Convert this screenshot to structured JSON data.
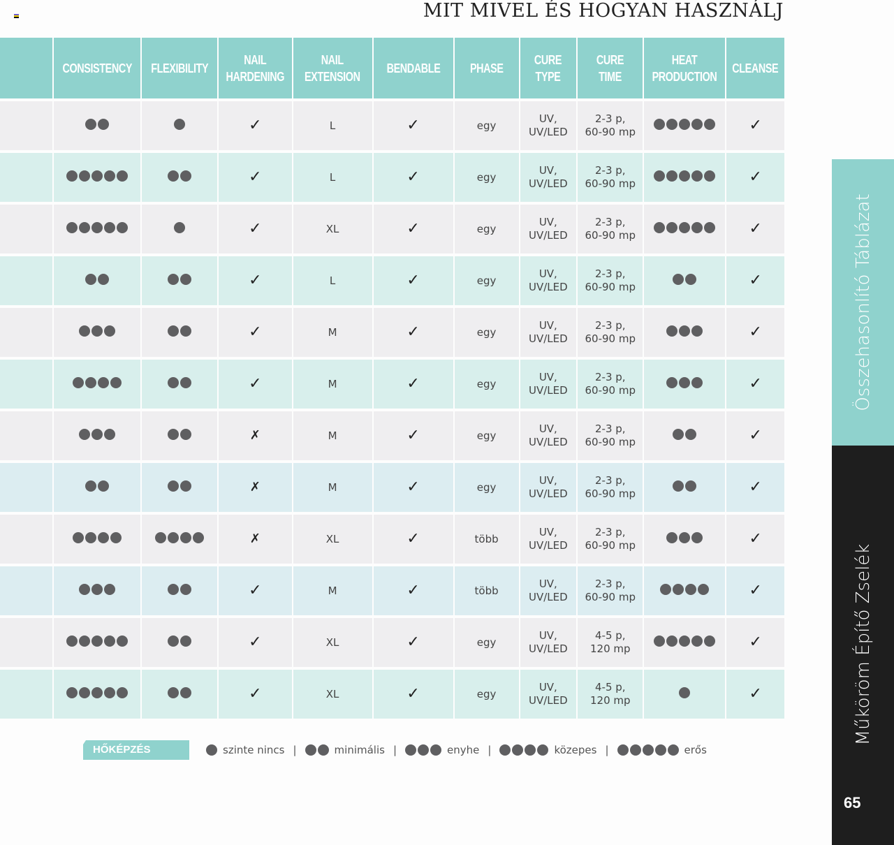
{
  "page_title": "MIT MIVEL ÉS HOGYAN HASZNÁLJ",
  "headers": [
    "",
    "CONSISTENCY",
    "FLEXIBILITY",
    "NAIL\nHARDENING",
    "NAIL\nEXTENSION",
    "BENDABLE",
    "PHASE",
    "CURE\nTYPE",
    "CURE\nTIME",
    "HEAT\nPRODUCTION",
    "CLEANSE"
  ],
  "colors": {
    "header": "#8fd2cd",
    "row_gray": "#efeef0",
    "row_teal": "#d8efec",
    "row_blue": "#dcedf1",
    "dot": "#5f5f61"
  },
  "rows": [
    {
      "bg": "gray",
      "consistency": 2,
      "flexibility": 1,
      "hardening": "check",
      "extension": "L",
      "bendable": "check",
      "phase": "egy",
      "cure_type": "UV,\nUV/LED",
      "cure_time": "2-3 p,\n60-90 mp",
      "heat": 5,
      "cleanse": "check"
    },
    {
      "bg": "teal",
      "consistency": 5,
      "flexibility": 2,
      "hardening": "check",
      "extension": "L",
      "bendable": "check",
      "phase": "egy",
      "cure_type": "UV,\nUV/LED",
      "cure_time": "2-3 p,\n60-90 mp",
      "heat": 5,
      "cleanse": "check"
    },
    {
      "bg": "gray",
      "consistency": 5,
      "flexibility": 1,
      "hardening": "check",
      "extension": "XL",
      "bendable": "check",
      "phase": "egy",
      "cure_type": "UV,\nUV/LED",
      "cure_time": "2-3 p,\n60-90 mp",
      "heat": 5,
      "cleanse": "check"
    },
    {
      "bg": "teal",
      "consistency": 2,
      "flexibility": 2,
      "hardening": "check",
      "extension": "L",
      "bendable": "check",
      "phase": "egy",
      "cure_type": "UV,\nUV/LED",
      "cure_time": "2-3 p,\n60-90 mp",
      "heat": 2,
      "cleanse": "check"
    },
    {
      "bg": "gray",
      "consistency": 3,
      "flexibility": 2,
      "hardening": "check",
      "extension": "M",
      "bendable": "check",
      "phase": "egy",
      "cure_type": "UV,\nUV/LED",
      "cure_time": "2-3 p,\n60-90 mp",
      "heat": 3,
      "cleanse": "check"
    },
    {
      "bg": "teal",
      "consistency": 4,
      "flexibility": 2,
      "hardening": "check",
      "extension": "M",
      "bendable": "check",
      "phase": "egy",
      "cure_type": "UV,\nUV/LED",
      "cure_time": "2-3 p,\n60-90 mp",
      "heat": 3,
      "cleanse": "check"
    },
    {
      "bg": "gray",
      "consistency": 3,
      "flexibility": 2,
      "hardening": "cross",
      "extension": "M",
      "bendable": "check",
      "phase": "egy",
      "cure_type": "UV,\nUV/LED",
      "cure_time": "2-3 p,\n60-90 mp",
      "heat": 2,
      "cleanse": "check"
    },
    {
      "bg": "blue",
      "consistency": 2,
      "flexibility": 2,
      "hardening": "cross",
      "extension": "M",
      "bendable": "check",
      "phase": "egy",
      "cure_type": "UV,\nUV/LED",
      "cure_time": "2-3 p,\n60-90 mp",
      "heat": 2,
      "cleanse": "check"
    },
    {
      "bg": "gray",
      "consistency": 4,
      "flexibility": 4,
      "hardening": "cross",
      "extension": "XL",
      "bendable": "check",
      "phase": "több",
      "cure_type": "UV,\nUV/LED",
      "cure_time": "2-3 p,\n60-90 mp",
      "heat": 3,
      "cleanse": "check"
    },
    {
      "bg": "blue",
      "consistency": 3,
      "flexibility": 2,
      "hardening": "check",
      "extension": "M",
      "bendable": "check",
      "phase": "több",
      "cure_type": "UV,\nUV/LED",
      "cure_time": "2-3 p,\n60-90 mp",
      "heat": 4,
      "cleanse": "check"
    },
    {
      "bg": "gray",
      "consistency": 5,
      "flexibility": 2,
      "hardening": "check",
      "extension": "XL",
      "bendable": "check",
      "phase": "egy",
      "cure_type": "UV,\nUV/LED",
      "cure_time": "4-5 p,\n120 mp",
      "heat": 5,
      "cleanse": "check"
    },
    {
      "bg": "teal",
      "consistency": 5,
      "flexibility": 2,
      "hardening": "check",
      "extension": "XL",
      "bendable": "check",
      "phase": "egy",
      "cure_type": "UV,\nUV/LED",
      "cure_time": "4-5 p,\n120 mp",
      "heat": 1,
      "cleanse": "check"
    }
  ],
  "legend": {
    "tag": "HŐKÉPZÉS",
    "items": [
      {
        "dots": 1,
        "label": "szinte nincs"
      },
      {
        "dots": 2,
        "label": "minimális"
      },
      {
        "dots": 3,
        "label": "enyhe"
      },
      {
        "dots": 4,
        "label": "közepes"
      },
      {
        "dots": 5,
        "label": "erős"
      }
    ]
  },
  "side": {
    "top_label": "Összehasonlító Táblázat",
    "bottom_label": "Műköröm Építő Zselék",
    "page_number": "65"
  }
}
